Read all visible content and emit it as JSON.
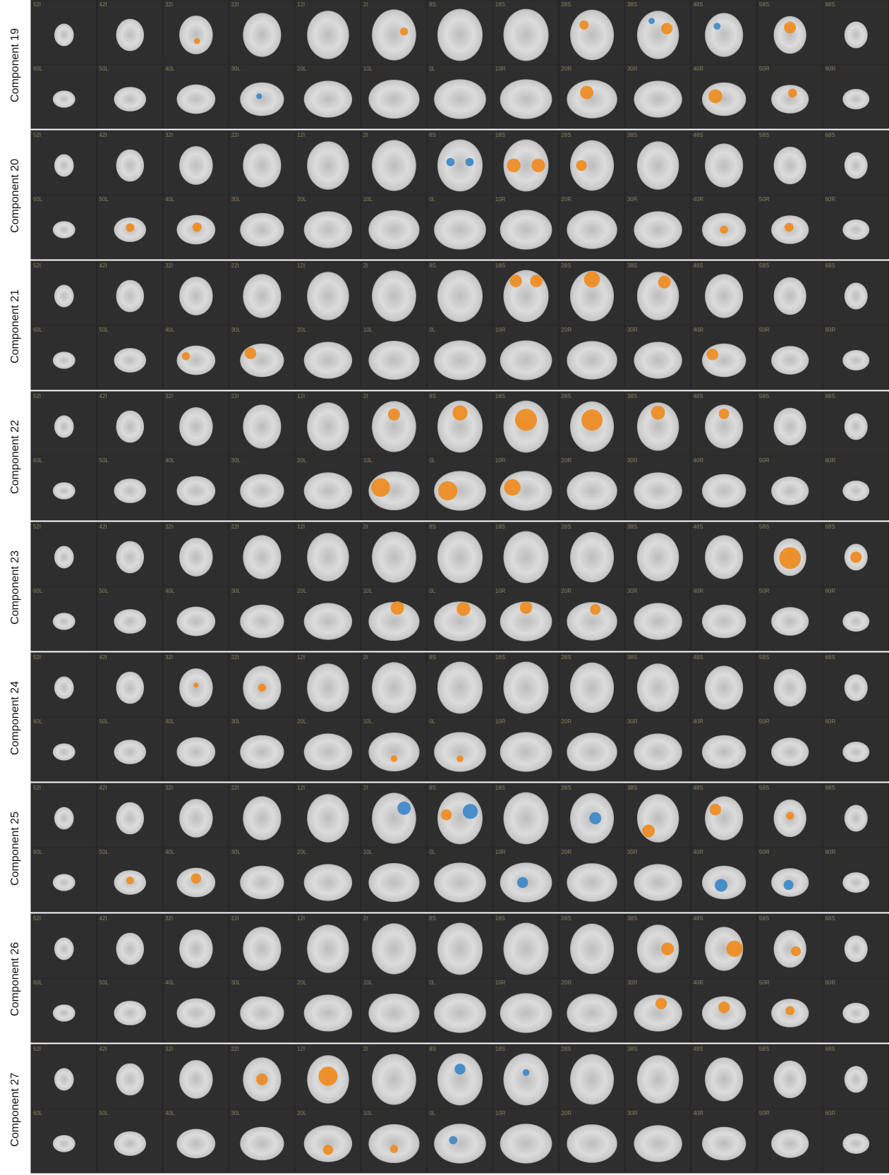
{
  "components": [
    "Component 19",
    "Component 20",
    "Component 21",
    "Component 22",
    "Component 23",
    "Component 24",
    "Component 25",
    "Component 26",
    "Component 27"
  ],
  "axial_labels": [
    "52I",
    "42I",
    "32I",
    "22I",
    "12I",
    "2I",
    "8S",
    "18S",
    "28S",
    "38S",
    "48S",
    "58S",
    "68S"
  ],
  "sagittal_labels": [
    "60L",
    "50L",
    "40L",
    "30L",
    "20L",
    "10L",
    "0L",
    "10R",
    "20R",
    "30R",
    "40R",
    "50R",
    "60R"
  ]
}
